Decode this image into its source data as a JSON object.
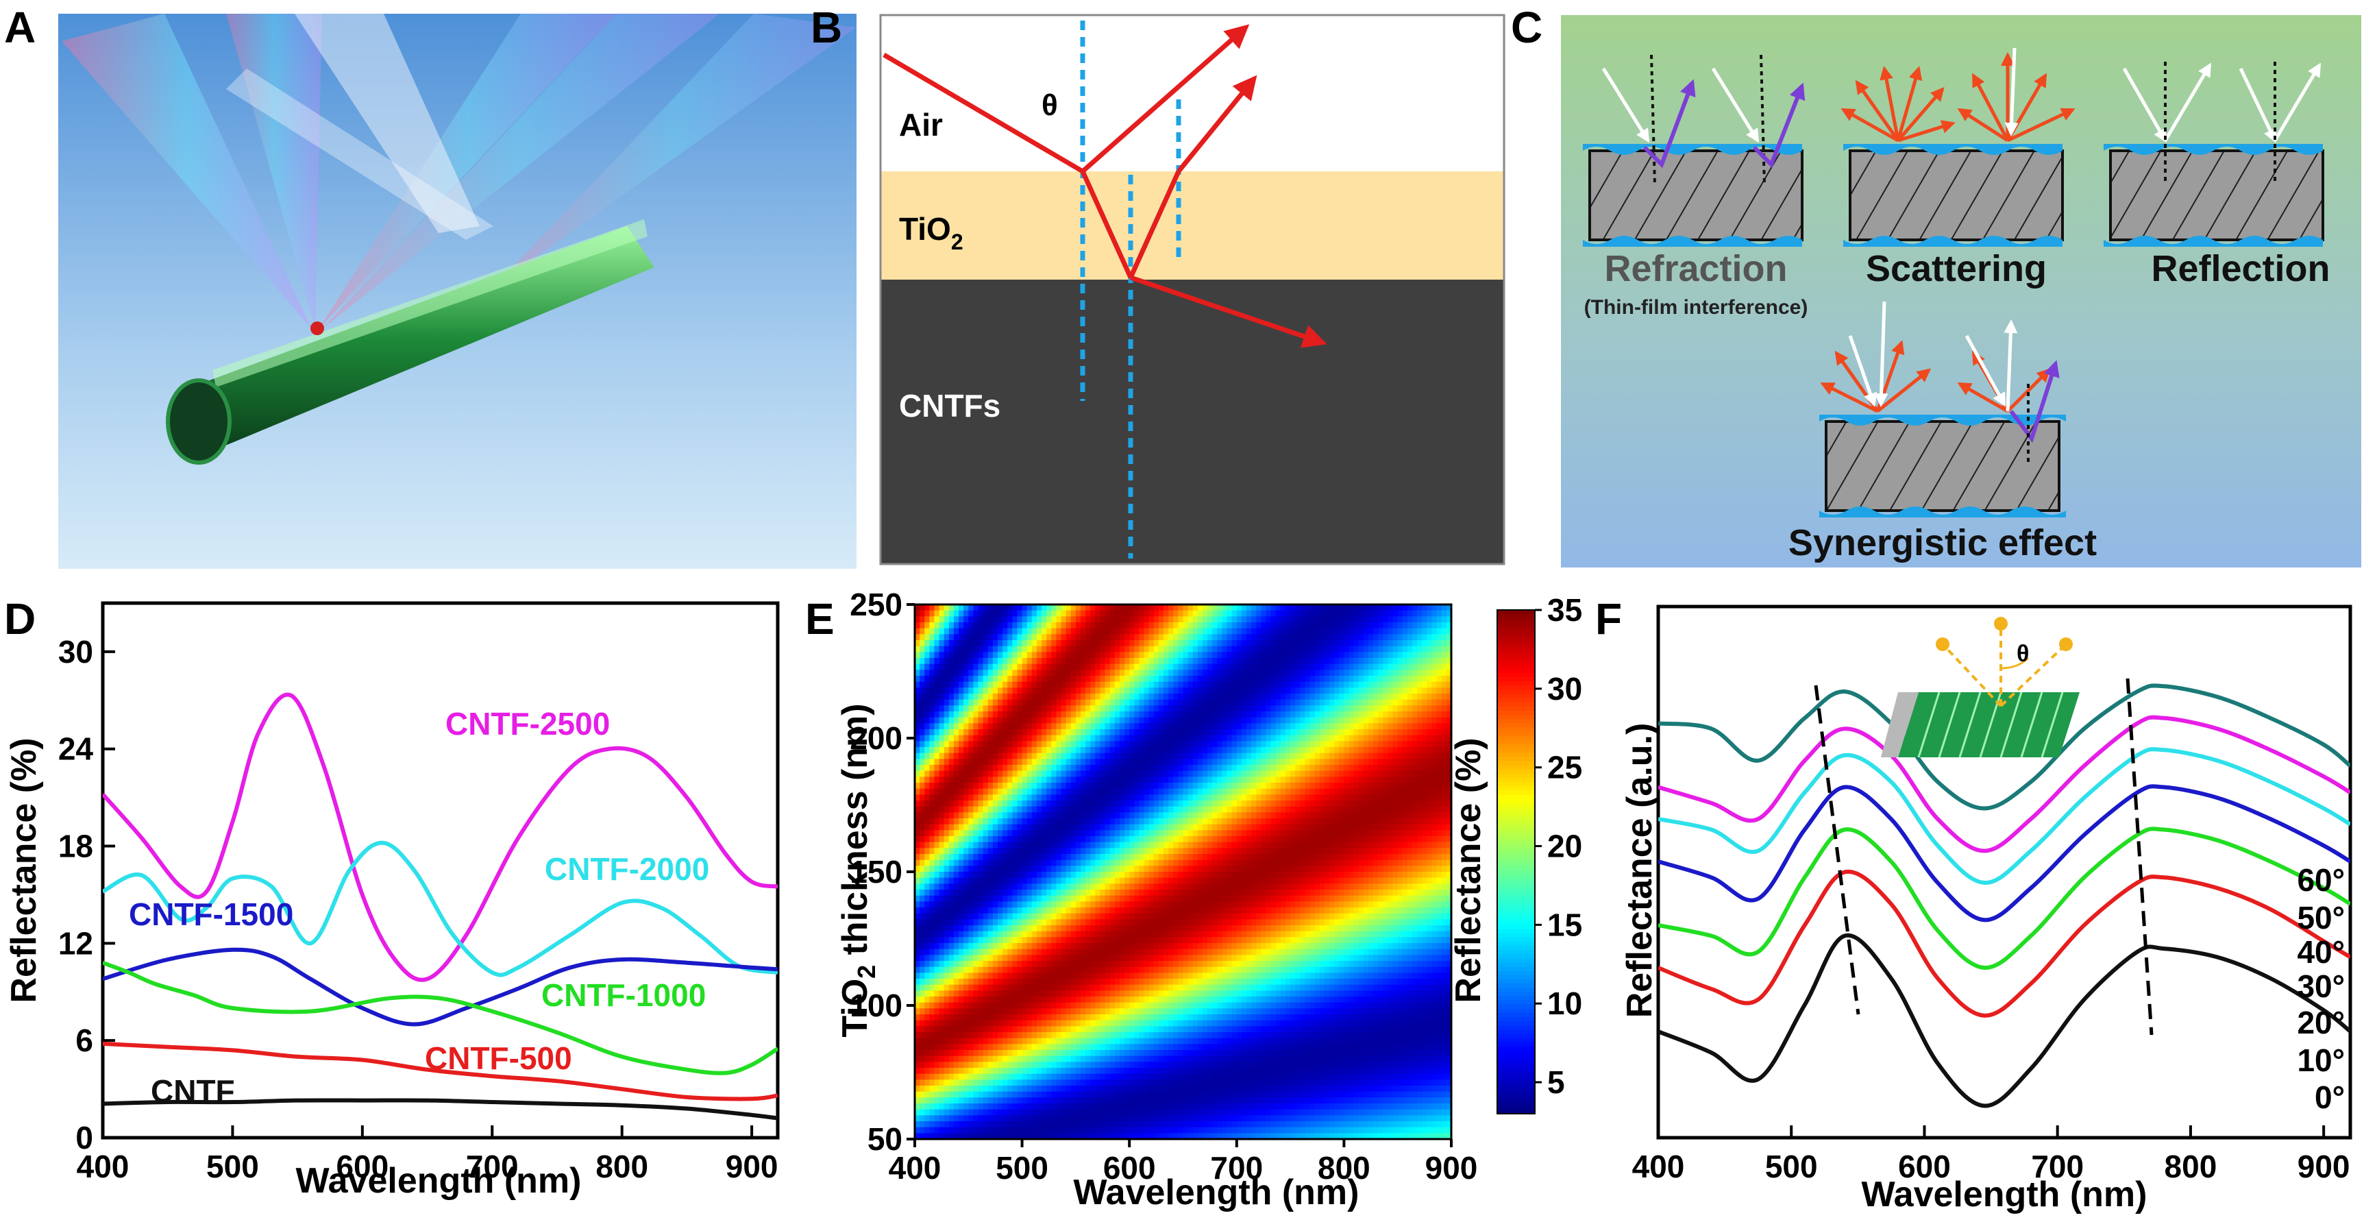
{
  "panels": {
    "A": {
      "label": "A"
    },
    "B": {
      "label": "B",
      "texts": {
        "air": "Air",
        "tio2": "TiO",
        "tio2_sub": "2",
        "cntfs": "CNTFs",
        "theta": "θ"
      }
    },
    "C": {
      "label": "C",
      "texts": {
        "refraction": "Refraction",
        "thin_film": "(Thin-film interference)",
        "scattering": "Scattering",
        "reflection": "Reflection",
        "synergistic": "Synergistic effect"
      }
    },
    "D": {
      "label": "D"
    },
    "E": {
      "label": "E"
    },
    "F": {
      "label": "F",
      "theta": "θ"
    }
  },
  "colors": {
    "magenta": "#e61ee6",
    "cyan": "#2ee0ea",
    "blue": "#1a1ac8",
    "green": "#22dd22",
    "red": "#e61e1e",
    "black": "#111111",
    "teal": "#1a7a78",
    "cntf_dark": "#3f3f3f",
    "tio2_layer": "#fde2a4",
    "ray": "#e41d1d",
    "normal": "#1fa3e6"
  },
  "chart_data": [
    {
      "id": "D",
      "type": "line",
      "xlabel": "Wavelength (nm)",
      "ylabel": "Reflectance (%)",
      "xlim": [
        400,
        920
      ],
      "ylim": [
        0,
        33
      ],
      "xticks": [
        400,
        500,
        600,
        700,
        800,
        900
      ],
      "yticks": [
        0,
        6,
        12,
        18,
        24,
        30
      ],
      "series": [
        {
          "name": "CNTF-2500",
          "color": "#e61ee6",
          "x": [
            400,
            430,
            460,
            480,
            500,
            520,
            545,
            570,
            600,
            625,
            650,
            680,
            720,
            760,
            790,
            820,
            850,
            880,
            900,
            920
          ],
          "y": [
            21.2,
            18.5,
            15.5,
            15.2,
            19.5,
            25,
            27.3,
            23,
            15,
            11,
            9.8,
            12.5,
            18.5,
            22.8,
            24,
            23.5,
            21,
            17.5,
            15.8,
            15.5
          ]
        },
        {
          "name": "CNTF-2000",
          "color": "#2ee0ea",
          "x": [
            400,
            430,
            460,
            480,
            500,
            530,
            560,
            590,
            615,
            640,
            670,
            700,
            720,
            760,
            800,
            830,
            860,
            890,
            920
          ],
          "y": [
            15.2,
            16.2,
            13.5,
            14.2,
            16,
            15.5,
            12,
            16.5,
            18.2,
            16.5,
            12.5,
            10.2,
            10.5,
            12.5,
            14.5,
            14.2,
            12.5,
            10.6,
            10.2
          ]
        },
        {
          "name": "CNTF-1500",
          "color": "#1a1ac8",
          "x": [
            400,
            450,
            500,
            530,
            560,
            600,
            640,
            680,
            720,
            760,
            800,
            850,
            900,
            920
          ],
          "y": [
            9.8,
            11,
            11.6,
            11.2,
            9.8,
            8,
            7,
            8,
            9.2,
            10.5,
            11,
            10.8,
            10.5,
            10.4
          ]
        },
        {
          "name": "CNTF-1000",
          "color": "#22dd22",
          "x": [
            400,
            420,
            440,
            470,
            500,
            560,
            620,
            660,
            700,
            750,
            800,
            850,
            880,
            900,
            920
          ],
          "y": [
            10.8,
            10.2,
            9.5,
            8.8,
            8,
            7.8,
            8.6,
            8.6,
            7.8,
            6.5,
            5,
            4.2,
            4,
            4.5,
            5.5
          ]
        },
        {
          "name": "CNTF-500",
          "color": "#e61e1e",
          "x": [
            400,
            450,
            500,
            550,
            600,
            650,
            700,
            750,
            800,
            850,
            900,
            920
          ],
          "y": [
            5.8,
            5.6,
            5.4,
            5,
            4.8,
            4.2,
            3.8,
            3.5,
            3,
            2.5,
            2.4,
            2.6
          ]
        },
        {
          "name": "CNTF",
          "color": "#111111",
          "x": [
            400,
            450,
            500,
            550,
            600,
            650,
            700,
            750,
            800,
            850,
            900,
            920
          ],
          "y": [
            2.1,
            2.2,
            2.2,
            2.3,
            2.3,
            2.3,
            2.2,
            2.1,
            2,
            1.8,
            1.4,
            1.2
          ]
        }
      ]
    },
    {
      "id": "E",
      "type": "heatmap",
      "xlabel": "Wavelength (nm)",
      "ylabel_main": "TiO",
      "ylabel_sub": "2",
      "ylabel_rest": " thickness (nm)",
      "xlim": [
        400,
        900
      ],
      "ylim": [
        50,
        250
      ],
      "xticks": [
        400,
        500,
        600,
        700,
        800,
        900
      ],
      "yticks": [
        50,
        100,
        150,
        200,
        250
      ],
      "colorbar": {
        "label": "Reflectance (%)",
        "range": [
          3,
          35
        ],
        "ticks": [
          5,
          10,
          15,
          20,
          25,
          30,
          35
        ]
      }
    },
    {
      "id": "F",
      "type": "line",
      "xlabel": "Wavelength (nm)",
      "ylabel": "Reflectance (a.u.)",
      "xlim": [
        400,
        920
      ],
      "xticks": [
        400,
        500,
        600,
        700,
        800,
        900
      ],
      "series": [
        {
          "name": "0°",
          "color": "#111111",
          "x": [
            400,
            440,
            475,
            510,
            540,
            575,
            610,
            645,
            680,
            720,
            760,
            780,
            820,
            860,
            900,
            920
          ],
          "y": [
            0.6,
            0.4,
            0.15,
            0.85,
            1.5,
            1.1,
            0.3,
            -0.1,
            0.25,
            0.9,
            1.35,
            1.38,
            1.3,
            1.1,
            0.8,
            0.6
          ]
        },
        {
          "name": "10°",
          "color": "#e61e1e",
          "x": [
            400,
            440,
            475,
            510,
            540,
            575,
            610,
            645,
            680,
            720,
            760,
            780,
            820,
            860,
            900,
            920
          ],
          "y": [
            1.2,
            1.0,
            0.9,
            1.6,
            2.1,
            1.8,
            1.1,
            0.75,
            1.05,
            1.6,
            2,
            2.05,
            1.95,
            1.75,
            1.45,
            1.3
          ]
        },
        {
          "name": "20°",
          "color": "#22dd22",
          "x": [
            400,
            440,
            475,
            510,
            540,
            575,
            610,
            645,
            680,
            720,
            760,
            780,
            820,
            860,
            900,
            920
          ],
          "y": [
            1.6,
            1.5,
            1.35,
            2.05,
            2.5,
            2.2,
            1.55,
            1.2,
            1.5,
            2.05,
            2.45,
            2.5,
            2.4,
            2.2,
            1.95,
            1.8
          ]
        },
        {
          "name": "30°",
          "color": "#1a1ac8",
          "x": [
            400,
            440,
            475,
            510,
            540,
            575,
            610,
            645,
            680,
            720,
            760,
            780,
            820,
            860,
            900,
            920
          ],
          "y": [
            2.2,
            2.05,
            1.85,
            2.5,
            2.9,
            2.6,
            2.0,
            1.65,
            1.95,
            2.45,
            2.85,
            2.9,
            2.8,
            2.6,
            2.35,
            2.2
          ]
        },
        {
          "name": "40°",
          "color": "#2ee0ea",
          "x": [
            400,
            440,
            475,
            510,
            540,
            575,
            610,
            645,
            680,
            720,
            760,
            780,
            820,
            860,
            900,
            920
          ],
          "y": [
            2.6,
            2.5,
            2.3,
            2.85,
            3.2,
            2.95,
            2.35,
            2.0,
            2.3,
            2.8,
            3.2,
            3.25,
            3.15,
            2.95,
            2.7,
            2.55
          ]
        },
        {
          "name": "50°",
          "color": "#e61ee6",
          "x": [
            400,
            440,
            475,
            510,
            540,
            575,
            610,
            645,
            680,
            720,
            760,
            780,
            820,
            860,
            900,
            920
          ],
          "y": [
            2.9,
            2.75,
            2.6,
            3.15,
            3.45,
            3.2,
            2.6,
            2.3,
            2.6,
            3.1,
            3.5,
            3.55,
            3.45,
            3.25,
            3.0,
            2.85
          ]
        },
        {
          "name": "60°",
          "color": "#1a7a78",
          "x": [
            400,
            440,
            475,
            510,
            540,
            575,
            610,
            645,
            680,
            720,
            760,
            780,
            820,
            860,
            900,
            920
          ],
          "y": [
            3.5,
            3.45,
            3.15,
            3.55,
            3.8,
            3.5,
            2.95,
            2.7,
            2.95,
            3.45,
            3.8,
            3.85,
            3.75,
            3.55,
            3.3,
            3.1
          ]
        }
      ]
    }
  ]
}
